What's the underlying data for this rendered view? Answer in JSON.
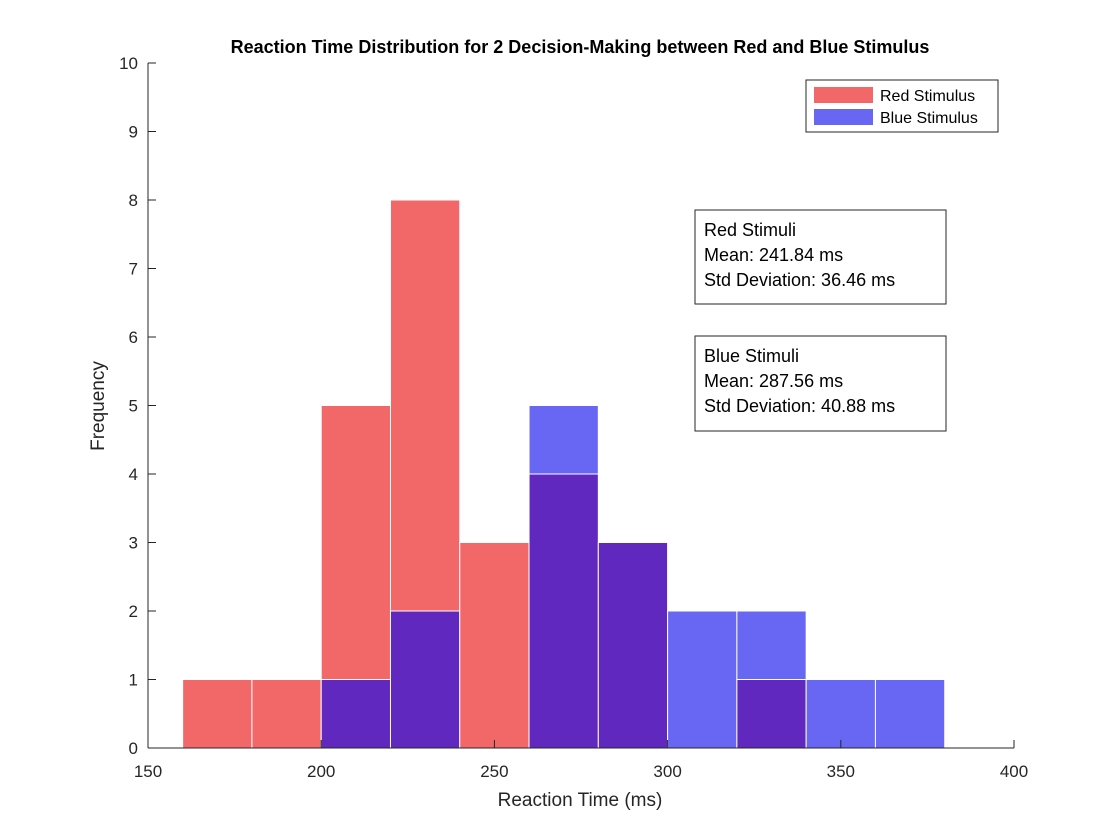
{
  "chart_data": {
    "type": "bar",
    "title": "Reaction Time Distribution for 2 Decision-Making between Red and Blue Stimulus",
    "xlabel": "Reaction Time (ms)",
    "ylabel": "Frequency",
    "xlim": [
      150,
      400
    ],
    "ylim": [
      0,
      10
    ],
    "xticks": [
      150,
      200,
      250,
      300,
      350,
      400
    ],
    "yticks": [
      0,
      1,
      2,
      3,
      4,
      5,
      6,
      7,
      8,
      9,
      10
    ],
    "bin_width": 20,
    "grid": false,
    "legend_position": "top-right",
    "overlap_color": "#6128bf",
    "series": [
      {
        "name": "Red Stimulus",
        "color": "#f26868",
        "bins": [
          {
            "start": 160,
            "count": 1
          },
          {
            "start": 180,
            "count": 1
          },
          {
            "start": 200,
            "count": 5
          },
          {
            "start": 220,
            "count": 8
          },
          {
            "start": 240,
            "count": 3
          },
          {
            "start": 260,
            "count": 4
          },
          {
            "start": 280,
            "count": 3
          },
          {
            "start": 320,
            "count": 1
          }
        ]
      },
      {
        "name": "Blue Stimulus",
        "color": "#6767f4",
        "bins": [
          {
            "start": 200,
            "count": 1
          },
          {
            "start": 220,
            "count": 2
          },
          {
            "start": 260,
            "count": 5
          },
          {
            "start": 280,
            "count": 3
          },
          {
            "start": 300,
            "count": 2
          },
          {
            "start": 320,
            "count": 2
          },
          {
            "start": 340,
            "count": 1
          },
          {
            "start": 360,
            "count": 1
          }
        ]
      }
    ],
    "annotations": [
      {
        "name": "red-stats",
        "lines": [
          "Red Stimuli",
          "Mean: 241.84 ms",
          "Std Deviation: 36.46 ms"
        ]
      },
      {
        "name": "blue-stats",
        "lines": [
          "Blue Stimuli",
          "Mean: 287.56 ms",
          "Std Deviation: 40.88 ms"
        ]
      }
    ]
  }
}
